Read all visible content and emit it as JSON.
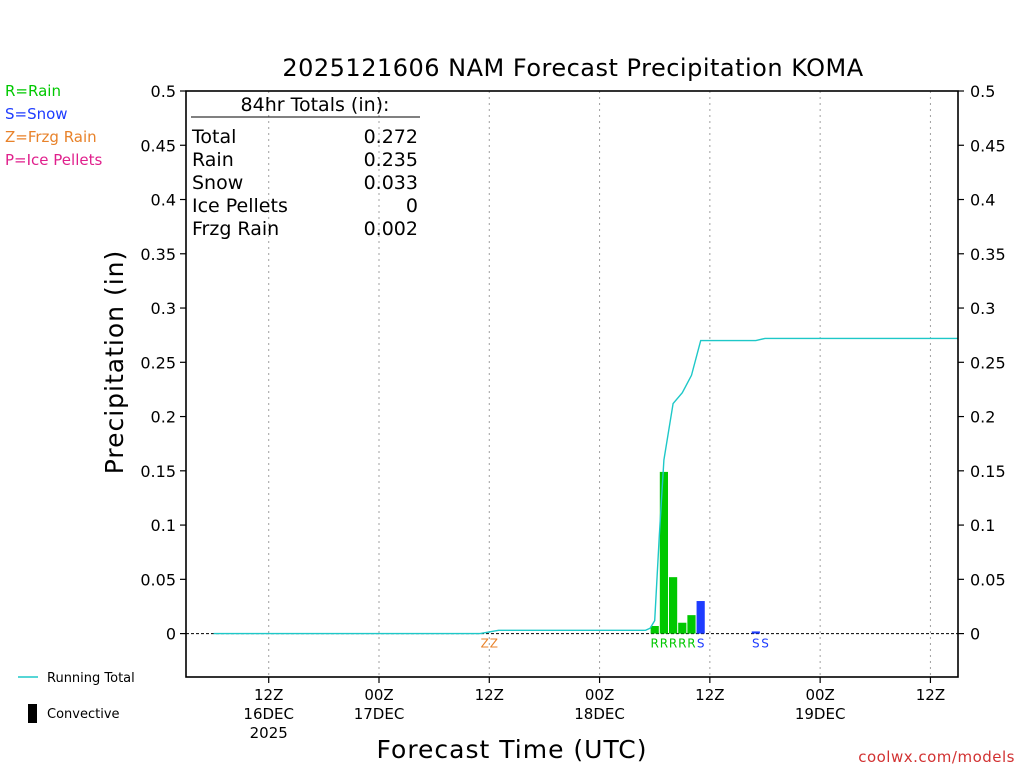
{
  "chart_data": {
    "type": "bar",
    "title": "2025121606 NAM Forecast Precipitation KOMA",
    "ylabel": "Precipitation (in)",
    "xlabel": "Forecast Time (UTC)",
    "ylim": [
      -0.04,
      0.5
    ],
    "xlim_hours": [
      -3,
      81
    ],
    "y_ticks": [
      0,
      0.05,
      0.1,
      0.15,
      0.2,
      0.25,
      0.3,
      0.35,
      0.4,
      0.45,
      0.5
    ],
    "y_tick_labels": [
      "0",
      "0.05",
      "0.1",
      "0.15",
      "0.2",
      "0.25",
      "0.3",
      "0.35",
      "0.4",
      "0.45",
      "0.5"
    ],
    "x_ticks": [
      {
        "hour": 6,
        "time": "12Z",
        "date": "16DEC",
        "year": "2025"
      },
      {
        "hour": 18,
        "time": "00Z",
        "date": "17DEC",
        "year": ""
      },
      {
        "hour": 30,
        "time": "12Z",
        "date": "",
        "year": ""
      },
      {
        "hour": 42,
        "time": "00Z",
        "date": "18DEC",
        "year": ""
      },
      {
        "hour": 54,
        "time": "12Z",
        "date": "",
        "year": ""
      },
      {
        "hour": 66,
        "time": "00Z",
        "date": "19DEC",
        "year": ""
      },
      {
        "hour": 78,
        "time": "12Z",
        "date": "",
        "year": ""
      }
    ],
    "grid_vertical": true,
    "bars": [
      {
        "hour": 48,
        "value": 0.007,
        "type": "rain",
        "color": "#00c800"
      },
      {
        "hour": 49,
        "value": 0.149,
        "type": "rain",
        "color": "#00c800"
      },
      {
        "hour": 50,
        "value": 0.052,
        "type": "rain",
        "color": "#00c800"
      },
      {
        "hour": 51,
        "value": 0.01,
        "type": "rain",
        "color": "#00c800"
      },
      {
        "hour": 52,
        "value": 0.017,
        "type": "rain",
        "color": "#00c800"
      },
      {
        "hour": 53,
        "value": 0.03,
        "type": "snow",
        "color": "#1e3cff"
      },
      {
        "hour": 59,
        "value": 0.002,
        "type": "snow",
        "color": "#1e3cff"
      }
    ],
    "type_labels": [
      {
        "hour": 29.5,
        "text": "Z",
        "color": "#e8822a"
      },
      {
        "hour": 30.5,
        "text": "Z",
        "color": "#e8822a"
      },
      {
        "hour": 48,
        "text": "R",
        "color": "#00c800"
      },
      {
        "hour": 49,
        "text": "R",
        "color": "#00c800"
      },
      {
        "hour": 50,
        "text": "R",
        "color": "#00c800"
      },
      {
        "hour": 51,
        "text": "R",
        "color": "#00c800"
      },
      {
        "hour": 52,
        "text": "R",
        "color": "#00c800"
      },
      {
        "hour": 53,
        "text": "S",
        "color": "#1e3cff"
      },
      {
        "hour": 59,
        "text": "S",
        "color": "#1e3cff"
      },
      {
        "hour": 60,
        "text": "S",
        "color": "#1e3cff"
      }
    ],
    "running_total": {
      "name": "Running Total",
      "color": "#1ec8c8",
      "points": [
        [
          0,
          0
        ],
        [
          29,
          0
        ],
        [
          31,
          0.003
        ],
        [
          47,
          0.003
        ],
        [
          47.5,
          0.005
        ],
        [
          48,
          0.012
        ],
        [
          48.5,
          0.09
        ],
        [
          49,
          0.16
        ],
        [
          50,
          0.212
        ],
        [
          51,
          0.222
        ],
        [
          52,
          0.238
        ],
        [
          53,
          0.27
        ],
        [
          56,
          0.27
        ],
        [
          59,
          0.27
        ],
        [
          60,
          0.272
        ],
        [
          81,
          0.272
        ]
      ]
    },
    "totals": {
      "header": "84hr Totals (in):",
      "rows": [
        {
          "label": "Total",
          "value": "0.272"
        },
        {
          "label": "Rain",
          "value": "0.235"
        },
        {
          "label": "Snow",
          "value": "0.033"
        },
        {
          "label": "Ice Pellets",
          "value": "0"
        },
        {
          "label": "Frzg Rain",
          "value": "0.002"
        }
      ]
    },
    "type_legend": [
      {
        "text": "R=Rain",
        "color": "#00c800"
      },
      {
        "text": "S=Snow",
        "color": "#1e3cff"
      },
      {
        "text": "Z=Frzg Rain",
        "color": "#e8822a"
      },
      {
        "text": "P=Ice Pellets",
        "color": "#e0208c"
      }
    ],
    "series_legend": {
      "running_total": "Running Total",
      "convective": "Convective"
    }
  },
  "watermark": "coolwx.com/models"
}
